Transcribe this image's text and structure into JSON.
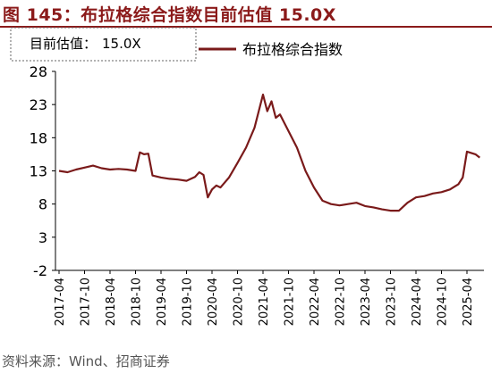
{
  "title": "图 145：布拉格综合指数目前估值 15.0X",
  "source": "资料来源：Wind、招商证券",
  "colors": {
    "accent": "#8b1a1a",
    "series": "#7a1a1a",
    "axis": "#000000",
    "box_border": "#666666"
  },
  "chart_data": {
    "type": "line",
    "title": "布拉格综合指数目前估值 15.0X",
    "xlabel": "",
    "ylabel": "",
    "ylim": [
      -2,
      28
    ],
    "yticks": [
      -2,
      3,
      8,
      13,
      18,
      23,
      28
    ],
    "grid": false,
    "legend_placement": "top-right",
    "x_tick_labels": [
      "2017-04",
      "2017-10",
      "2018-04",
      "2018-10",
      "2019-04",
      "2019-10",
      "2020-04",
      "2020-10",
      "2021-04",
      "2021-10",
      "2022-04",
      "2022-10",
      "2023-04",
      "2023-10",
      "2024-04",
      "2024-10",
      "2025-04"
    ],
    "annotation": {
      "label": "目前估值：",
      "value": "15.0X"
    },
    "series": [
      {
        "name": "布拉格综合指数",
        "x": [
          "2017-04",
          "2017-06",
          "2017-08",
          "2017-10",
          "2017-12",
          "2018-02",
          "2018-04",
          "2018-06",
          "2018-08",
          "2018-10",
          "2018-11",
          "2018-12",
          "2019-01",
          "2019-02",
          "2019-04",
          "2019-06",
          "2019-08",
          "2019-10",
          "2019-12",
          "2020-01",
          "2020-02",
          "2020-03",
          "2020-04",
          "2020-05",
          "2020-06",
          "2020-08",
          "2020-10",
          "2020-12",
          "2021-02",
          "2021-04",
          "2021-05",
          "2021-06",
          "2021-07",
          "2021-08",
          "2021-10",
          "2021-12",
          "2022-02",
          "2022-04",
          "2022-06",
          "2022-08",
          "2022-10",
          "2022-12",
          "2023-02",
          "2023-04",
          "2023-06",
          "2023-08",
          "2023-10",
          "2023-12",
          "2024-02",
          "2024-04",
          "2024-06",
          "2024-08",
          "2024-10",
          "2024-12",
          "2025-02",
          "2025-03",
          "2025-04",
          "2025-06",
          "2025-07"
        ],
        "values": [
          13.0,
          12.8,
          13.2,
          13.5,
          13.8,
          13.4,
          13.2,
          13.3,
          13.2,
          13.0,
          15.8,
          15.5,
          15.6,
          12.3,
          12.0,
          11.8,
          11.7,
          11.5,
          12.1,
          12.8,
          12.4,
          9.0,
          10.2,
          10.8,
          10.5,
          12.0,
          14.2,
          16.5,
          19.5,
          24.5,
          22.0,
          23.5,
          21.0,
          21.5,
          19.0,
          16.5,
          13.0,
          10.5,
          8.5,
          8.0,
          7.8,
          8.0,
          8.2,
          7.7,
          7.5,
          7.2,
          7.0,
          7.0,
          8.2,
          9.0,
          9.2,
          9.6,
          9.8,
          10.2,
          11.0,
          12.0,
          15.9,
          15.5,
          15.0
        ]
      }
    ]
  }
}
